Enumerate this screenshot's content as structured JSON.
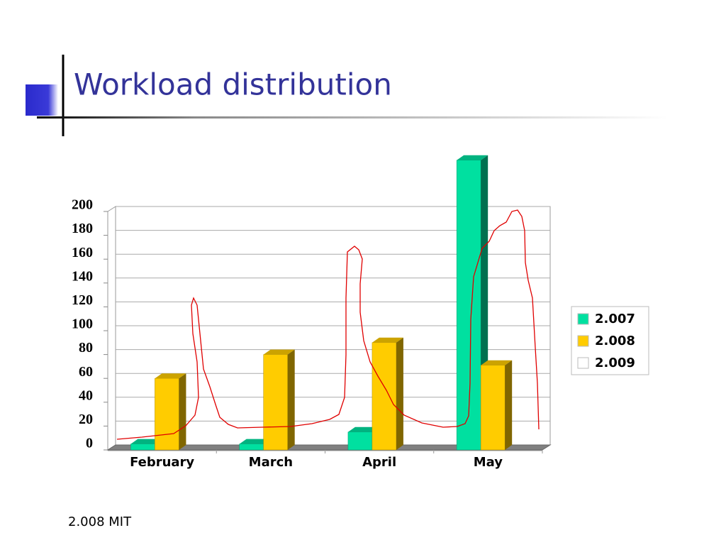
{
  "title": "Workload distribution",
  "footer": "2.008 MIT",
  "chart_data": {
    "type": "bar3d",
    "categories": [
      "February",
      "March",
      "April",
      "May"
    ],
    "series": [
      {
        "name": "2.007",
        "color": "#00e0a0",
        "values": [
          5,
          5,
          15,
          243
        ]
      },
      {
        "name": "2.008",
        "color": "#ffcc00",
        "values": [
          60,
          80,
          90,
          71
        ]
      },
      {
        "name": "2.009",
        "color": "#ffffff",
        "values": [
          null,
          null,
          null,
          null
        ]
      }
    ],
    "ylim": [
      0,
      200
    ],
    "yticks": [
      0,
      20,
      40,
      60,
      80,
      100,
      120,
      140,
      160,
      180,
      200
    ],
    "grid": true,
    "legend": "right"
  }
}
